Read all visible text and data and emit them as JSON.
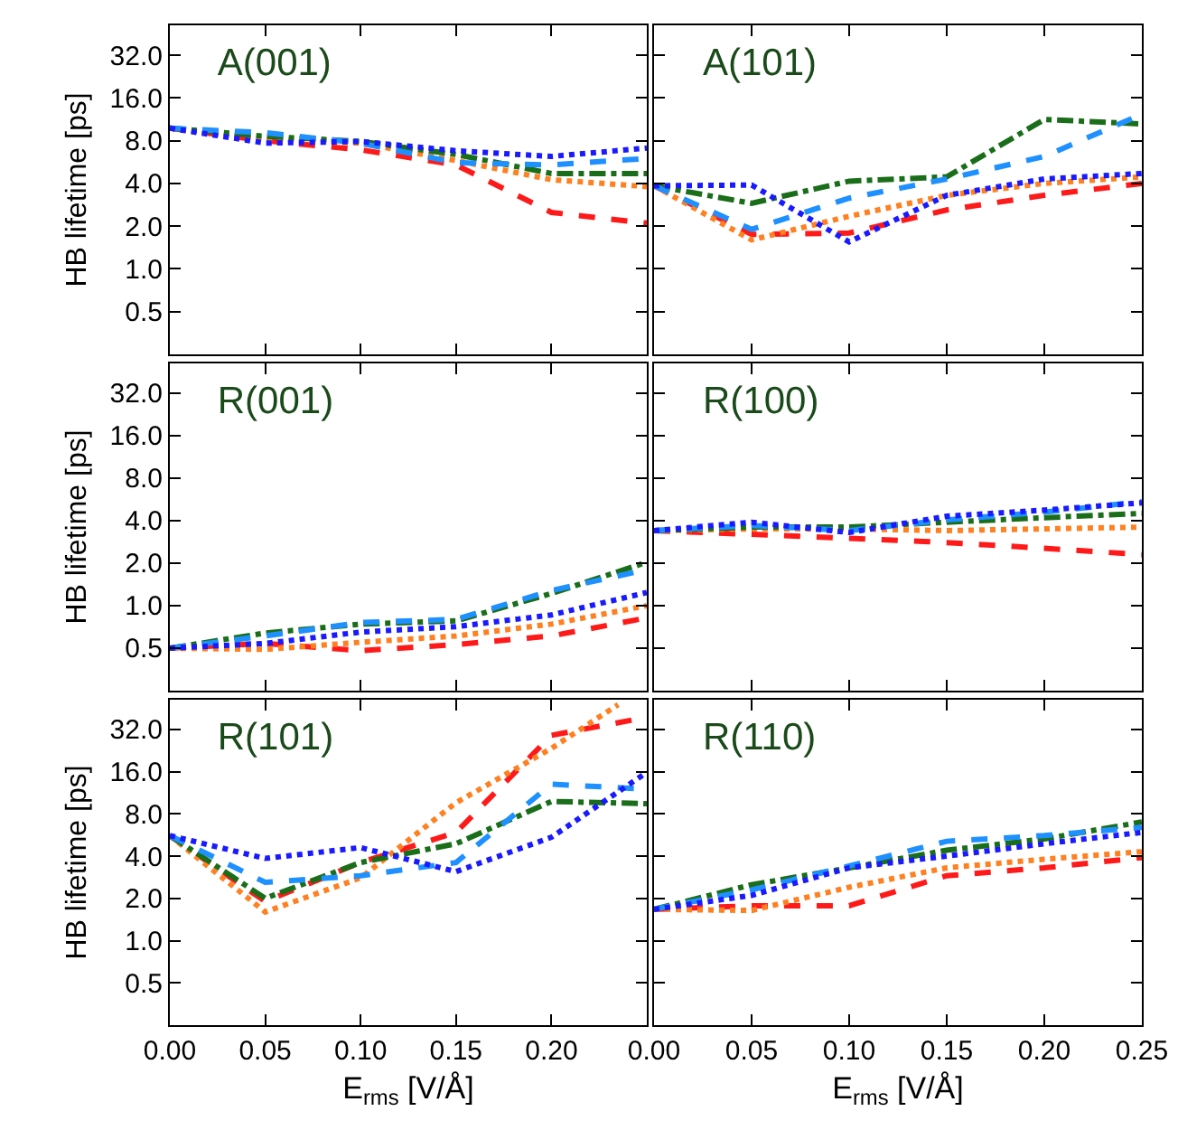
{
  "chart_data": [
    {
      "type": "line",
      "title": "A(001)",
      "ylabel": "HB lifetime [ps]",
      "log": "y",
      "grid": false,
      "tick_labels": "y",
      "marker": "none",
      "x": [
        0,
        0.05,
        0.1,
        0.15,
        0.2,
        0.25
      ],
      "xlim": [
        0,
        0.25
      ],
      "xticks": [
        0,
        0.05,
        0.1,
        0.15,
        0.2,
        0.25
      ],
      "ylim": [
        0.25,
        52
      ],
      "yticks": [
        0.5,
        {
          "value": 1,
          "label": "1.0"
        },
        {
          "value": 2,
          "label": "2.0"
        },
        {
          "value": 4,
          "label": "4.0"
        },
        {
          "value": 8,
          "label": "8.0"
        },
        {
          "value": 16,
          "label": "16.0"
        },
        {
          "value": 32,
          "label": "32.0"
        }
      ],
      "series": [
        {
          "color": "#ff1a1a",
          "line_style": "dashed",
          "values": [
            9.8,
            8.0,
            6.9,
            5.4,
            2.5,
            2.1
          ]
        },
        {
          "color": "#ff8020",
          "line_style": "dotted",
          "values": [
            9.8,
            8.2,
            7.7,
            5.8,
            4.25,
            3.8
          ]
        },
        {
          "color": "#1a6e1a",
          "line_style": "dashdot",
          "values": [
            9.8,
            8.6,
            7.9,
            6.4,
            4.7,
            4.7
          ]
        },
        {
          "color": "#1e90ff",
          "line_style": "dashed",
          "values": [
            9.8,
            9.1,
            7.7,
            5.6,
            5.4,
            6.0
          ]
        },
        {
          "color": "#1a1aff",
          "line_style": "dotted",
          "values": [
            9.8,
            7.7,
            7.9,
            6.8,
            6.2,
            7.1
          ]
        }
      ]
    },
    {
      "type": "line",
      "title": "A(101)",
      "log": "y",
      "grid": false,
      "tick_labels": false,
      "marker": "none",
      "x": [
        0,
        0.05,
        0.1,
        0.15,
        0.2,
        0.25
      ],
      "xlim": [
        0,
        0.25
      ],
      "xticks": [
        0,
        0.05,
        0.1,
        0.15,
        0.2,
        0.25
      ],
      "ylim": [
        0.25,
        52
      ],
      "yticks": [
        0.5,
        1,
        2,
        4,
        8,
        16,
        32
      ],
      "series": [
        {
          "color": "#ff1a1a",
          "line_style": "dashed",
          "values": [
            3.85,
            1.75,
            1.79,
            2.6,
            3.3,
            4.0
          ]
        },
        {
          "color": "#ff8020",
          "line_style": "dotted",
          "values": [
            3.85,
            1.6,
            2.35,
            3.3,
            4.0,
            4.45
          ]
        },
        {
          "color": "#1a6e1a",
          "line_style": "dashdot",
          "values": [
            3.85,
            2.9,
            4.15,
            4.45,
            11.3,
            10.5
          ]
        },
        {
          "color": "#1e90ff",
          "line_style": "dashed",
          "values": [
            3.85,
            1.9,
            3.15,
            4.3,
            6.2,
            12.3
          ]
        },
        {
          "color": "#1a1aff",
          "line_style": "dotted",
          "values": [
            3.85,
            3.9,
            1.55,
            3.3,
            4.3,
            4.7
          ]
        }
      ]
    },
    {
      "type": "line",
      "title": "R(001)",
      "ylabel": "HB lifetime [ps]",
      "log": "y",
      "grid": false,
      "tick_labels": "y",
      "marker": "none",
      "x": [
        0,
        0.05,
        0.1,
        0.15,
        0.2,
        0.25
      ],
      "xlim": [
        0,
        0.25
      ],
      "xticks": [
        0,
        0.05,
        0.1,
        0.15,
        0.2,
        0.25
      ],
      "ylim": [
        0.25,
        52
      ],
      "yticks": [
        0.5,
        {
          "value": 1,
          "label": "1.0"
        },
        {
          "value": 2,
          "label": "2.0"
        },
        {
          "value": 4,
          "label": "4.0"
        },
        {
          "value": 8,
          "label": "8.0"
        },
        {
          "value": 16,
          "label": "16.0"
        },
        {
          "value": 32,
          "label": "32.0"
        }
      ],
      "series": [
        {
          "color": "#ff1a1a",
          "line_style": "dashed",
          "values": [
            0.5,
            0.54,
            0.48,
            0.53,
            0.61,
            0.82
          ]
        },
        {
          "color": "#ff8020",
          "line_style": "dotted",
          "values": [
            0.5,
            0.49,
            0.55,
            0.61,
            0.74,
            1.0
          ]
        },
        {
          "color": "#1a6e1a",
          "line_style": "dashdot",
          "values": [
            0.5,
            0.64,
            0.74,
            0.78,
            1.22,
            2.03
          ]
        },
        {
          "color": "#1e90ff",
          "line_style": "dashed",
          "values": [
            0.5,
            0.61,
            0.76,
            0.8,
            1.28,
            1.8
          ]
        },
        {
          "color": "#1a1aff",
          "line_style": "dotted",
          "values": [
            0.5,
            0.54,
            0.65,
            0.71,
            0.86,
            1.24
          ]
        }
      ]
    },
    {
      "type": "line",
      "title": "R(100)",
      "log": "y",
      "grid": false,
      "tick_labels": false,
      "marker": "none",
      "x": [
        0,
        0.05,
        0.1,
        0.15,
        0.2,
        0.25
      ],
      "xlim": [
        0,
        0.25
      ],
      "xticks": [
        0,
        0.05,
        0.1,
        0.15,
        0.2,
        0.25
      ],
      "ylim": [
        0.25,
        52
      ],
      "yticks": [
        0.5,
        1,
        2,
        4,
        8,
        16,
        32
      ],
      "series": [
        {
          "color": "#ff1a1a",
          "line_style": "dashed",
          "values": [
            3.4,
            3.2,
            3.0,
            2.8,
            2.55,
            2.3
          ]
        },
        {
          "color": "#ff8020",
          "line_style": "dotted",
          "values": [
            3.4,
            3.5,
            3.5,
            3.4,
            3.5,
            3.6
          ]
        },
        {
          "color": "#1a6e1a",
          "line_style": "dashdot",
          "values": [
            3.4,
            3.6,
            3.6,
            3.9,
            4.2,
            4.5
          ]
        },
        {
          "color": "#1e90ff",
          "line_style": "dashed",
          "values": [
            3.4,
            3.7,
            3.4,
            4.05,
            4.6,
            5.45
          ]
        },
        {
          "color": "#1a1aff",
          "line_style": "dotted",
          "values": [
            3.4,
            3.9,
            3.3,
            4.3,
            4.75,
            5.35
          ]
        }
      ]
    },
    {
      "type": "line",
      "title": "R(101)",
      "ylabel": "HB lifetime [ps]",
      "xlabel": "E$_{rms}$ [V/Å]",
      "log": "y",
      "grid": false,
      "marker": "none",
      "x": [
        0,
        0.05,
        0.1,
        0.15,
        0.2,
        0.25
      ],
      "xlim": [
        0,
        0.25
      ],
      "xticks": [
        {
          "value": 0,
          "label": "0.00"
        },
        {
          "value": 0.05,
          "label": "0.05"
        },
        {
          "value": 0.1,
          "label": "0.10"
        },
        {
          "value": 0.15,
          "label": "0.15"
        },
        {
          "value": 0.2,
          "label": "0.20"
        },
        {
          "value": 0.25,
          "label": null
        }
      ],
      "ylim": [
        0.25,
        52
      ],
      "yticks": [
        0.5,
        {
          "value": 1,
          "label": "1.0"
        },
        {
          "value": 2,
          "label": "2.0"
        },
        {
          "value": 4,
          "label": "4.0"
        },
        {
          "value": 8,
          "label": "8.0"
        },
        {
          "value": 16,
          "label": "16.0"
        },
        {
          "value": 32,
          "label": "32.0"
        }
      ],
      "series": [
        {
          "color": "#ff1a1a",
          "line_style": "dashed",
          "values": [
            5.6,
            1.9,
            3.6,
            5.9,
            29,
            39
          ]
        },
        {
          "color": "#ff8020",
          "line_style": "dotted",
          "x": [
            0,
            0.05,
            0.1,
            0.15,
            0.2,
            0.235
          ],
          "values": [
            5.6,
            1.6,
            2.8,
            9.6,
            23.4,
            48
          ]
        },
        {
          "color": "#1a6e1a",
          "line_style": "dashdot",
          "values": [
            5.6,
            2.0,
            3.6,
            4.9,
            9.8,
            9.45
          ]
        },
        {
          "color": "#1e90ff",
          "line_style": "dashed",
          "values": [
            5.6,
            2.6,
            2.9,
            3.6,
            13,
            12
          ]
        },
        {
          "color": "#1a1aff",
          "line_style": "dotted",
          "values": [
            5.6,
            3.85,
            4.6,
            3.1,
            5.45,
            15.8
          ]
        }
      ]
    },
    {
      "type": "line",
      "title": "R(110)",
      "xlabel": "E$_{rms}$ [V/Å]",
      "log": "y",
      "grid": false,
      "tick_labels": "x",
      "marker": "none",
      "x": [
        0,
        0.05,
        0.1,
        0.15,
        0.2,
        0.25
      ],
      "xlim": [
        0,
        0.25
      ],
      "xticks": [
        {
          "value": 0,
          "label": "0.00"
        },
        {
          "value": 0.05,
          "label": "0.05"
        },
        {
          "value": 0.1,
          "label": "0.10"
        },
        {
          "value": 0.15,
          "label": "0.15"
        },
        {
          "value": 0.2,
          "label": "0.20"
        },
        {
          "value": 0.25,
          "label": "0.25"
        }
      ],
      "ylim": [
        0.25,
        52
      ],
      "yticks": [
        0.5,
        1,
        2,
        4,
        8,
        16,
        32
      ],
      "series": [
        {
          "color": "#ff1a1a",
          "line_style": "dashed",
          "values": [
            1.67,
            1.77,
            1.77,
            2.9,
            3.3,
            3.9
          ]
        },
        {
          "color": "#ff8020",
          "line_style": "dotted",
          "values": [
            1.67,
            1.64,
            2.4,
            3.3,
            3.8,
            4.3
          ]
        },
        {
          "color": "#1a6e1a",
          "line_style": "dashdot",
          "values": [
            1.67,
            2.5,
            3.3,
            4.4,
            5.3,
            7.0
          ]
        },
        {
          "color": "#1e90ff",
          "line_style": "dashed",
          "values": [
            1.67,
            2.3,
            3.4,
            5.1,
            5.6,
            6.4
          ]
        },
        {
          "color": "#1a1aff",
          "line_style": "dotted",
          "values": [
            1.67,
            2.1,
            3.3,
            4.0,
            4.9,
            5.9
          ]
        }
      ]
    }
  ]
}
